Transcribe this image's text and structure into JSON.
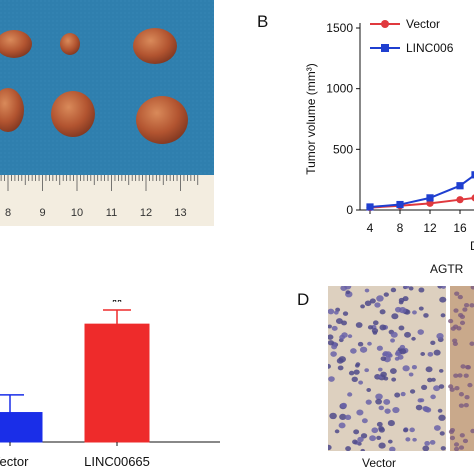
{
  "panels": {
    "A": {
      "ruler_labels": [
        "8",
        "9",
        "10",
        "11",
        "12",
        "13"
      ],
      "colors": {
        "background": "#2f7fae",
        "tumor": "#b7582f",
        "ruler": "#f3ede0"
      }
    },
    "B": {
      "letter": "B",
      "chart_data": {
        "type": "line",
        "ylabel": "Tumor volume (mm³)",
        "xlabel": "Days",
        "xticks": [
          "4",
          "8",
          "12",
          "16"
        ],
        "yticks": [
          "0",
          "500",
          "1000",
          "1500"
        ],
        "ylim": [
          0,
          1500
        ],
        "x": [
          4,
          8,
          12,
          16,
          18
        ],
        "series": [
          {
            "name": "Vector",
            "color": "#e0393e",
            "marker": "circle",
            "values": [
              20,
              35,
              55,
              85,
              100
            ]
          },
          {
            "name": "LINC006",
            "color": "#1f3fd0",
            "marker": "square",
            "values": [
              25,
              45,
              100,
              200,
              290
            ]
          }
        ]
      }
    },
    "C": {
      "chart_data": {
        "type": "bar",
        "categories": [
          "Vector",
          "LINC00665"
        ],
        "values": [
          25,
          100
        ],
        "errors": [
          15,
          12
        ],
        "colors": [
          "#1a2ee8",
          "#ee2b2b"
        ],
        "annotations": [
          "",
          "**"
        ]
      }
    },
    "D": {
      "letter": "D",
      "title": "AGTR",
      "caption": "Vector"
    }
  }
}
